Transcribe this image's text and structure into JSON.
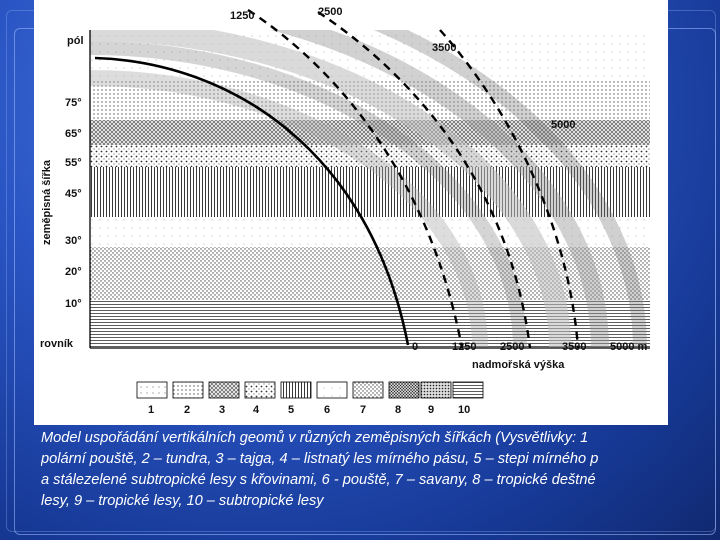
{
  "diagram": {
    "pole_label": "pól",
    "equator_label": "rovník",
    "y_axis_label": "zeměpisná šířka",
    "x_axis_label": "nadmořská výška",
    "latitude_labels": [
      "75°",
      "65°",
      "55°",
      "45°",
      "30°",
      "20°",
      "10°"
    ],
    "top_labels": [
      "1250",
      "2500",
      "3500",
      "5000"
    ],
    "bottom_labels": [
      "0",
      "1250",
      "2500",
      "3500",
      "5000 m"
    ],
    "legend_numbers": [
      "1",
      "2",
      "3",
      "4",
      "5",
      "6",
      "7",
      "8",
      "9",
      "10"
    ]
  },
  "caption": {
    "line1": "Model uspořádání vertikálních geomů v různých zeměpisných šířkách (Vysvětlivky: 1",
    "line2": "polární pouště, 2 – tundra, 3 – tajga, 4 – listnatý les mírného pásu, 5 – stepi mírného p",
    "line3": "a stálezelené subtropické lesy s křovinami, 6 - pouště, 7 – savany, 8 – tropické deštné",
    "line4": "lesy, 9 – tropické lesy, 10 – subtropické lesy"
  }
}
